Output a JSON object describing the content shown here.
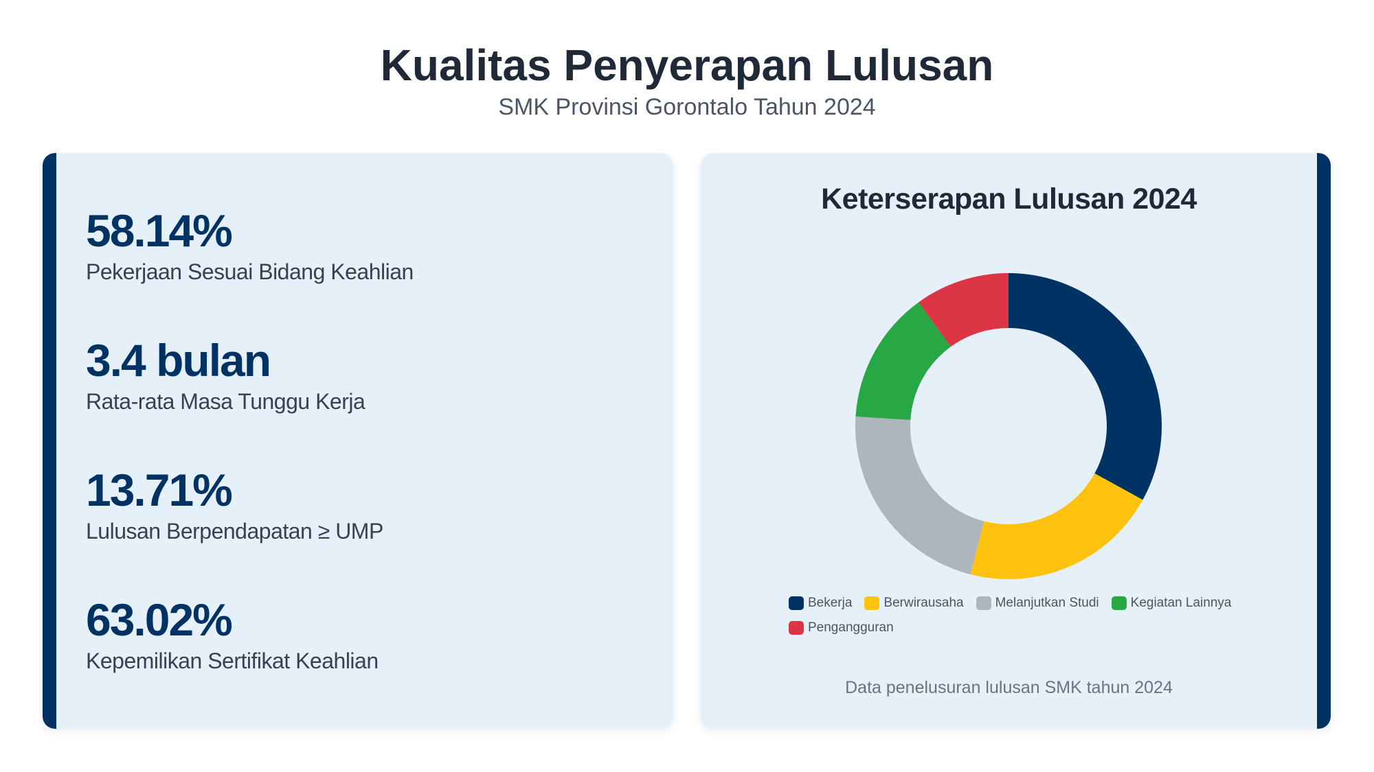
{
  "header": {
    "title": "Kualitas Penyerapan Lulusan",
    "subtitle": "SMK Provinsi Gorontalo Tahun 2024"
  },
  "stats": [
    {
      "value": "58.14%",
      "label": "Pekerjaan Sesuai Bidang Keahlian"
    },
    {
      "value": "3.4 bulan",
      "label": "Rata-rata Masa Tunggu Kerja"
    },
    {
      "value": "13.71%",
      "label": "Lulusan Berpendapatan ≥ UMP"
    },
    {
      "value": "63.02%",
      "label": "Kepemilikan Sertifikat Keahlian"
    }
  ],
  "chart_data": {
    "type": "doughnut",
    "title": "Keterserapan Lulusan 2024",
    "categories": [
      "Bekerja",
      "Berwirausaha",
      "Melanjutkan Studi",
      "Kegiatan Lainnya",
      "Pengangguran"
    ],
    "values": [
      33,
      21,
      22,
      14,
      10
    ],
    "colors": [
      "#003263",
      "#ffc20e",
      "#adb5bd",
      "#28a745",
      "#dc3545"
    ],
    "note": "Data penelusuran lulusan SMK tahun 2024"
  }
}
